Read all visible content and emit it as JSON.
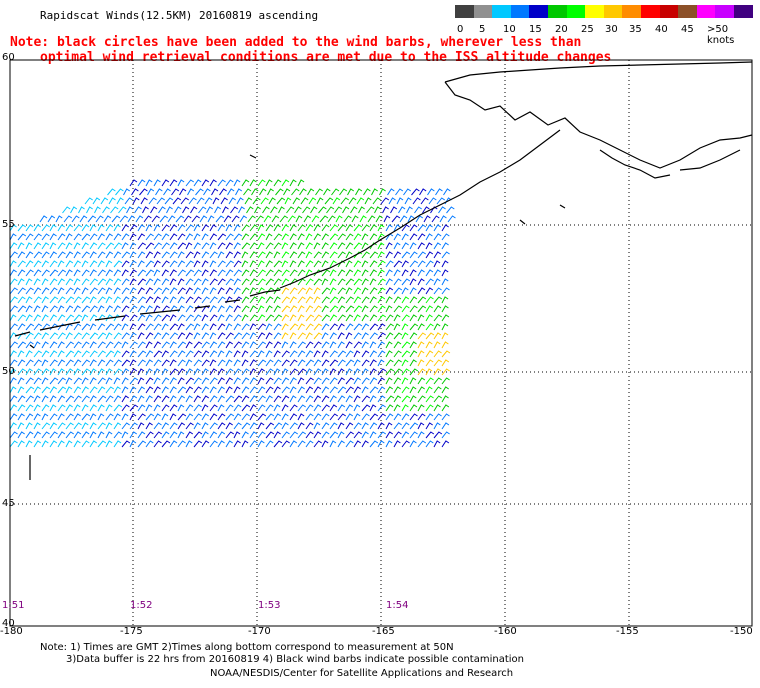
{
  "header": {
    "title": "Rapidscat Winds(12.5KM) 20160819 ascending",
    "note_line1": "Note: black circles have been added to the wind barbs, wherever less than",
    "note_line2": "optimal wind retrieval conditions are met due to the ISS altitude changes"
  },
  "legend": {
    "colors": [
      "#404040",
      "#909090",
      "#00c8ff",
      "#0078ff",
      "#0000c8",
      "#00c800",
      "#00ff00",
      "#ffff00",
      "#ffc800",
      "#ff8c00",
      "#ff0000",
      "#c80000",
      "#8c5028",
      "#ff00ff",
      "#c800ff",
      "#400080"
    ],
    "labels": [
      "0",
      "5",
      "10",
      "15",
      "20",
      "25",
      "30",
      "35",
      "40",
      "45",
      ">50 knots"
    ]
  },
  "map": {
    "lat_labels": [
      "60",
      "55",
      "50",
      "45",
      "40"
    ],
    "lon_labels": [
      "-180",
      "-175",
      "-170",
      "-165",
      "-160",
      "-155",
      "-150"
    ],
    "time_labels": [
      "1:51",
      "1:52",
      "1:53",
      "1:54"
    ]
  },
  "footer": {
    "line1": "Note: 1) Times are GMT 2)Times along bottom correspond to measurement at 50N",
    "line2": "3)Data buffer is 22 hrs from 20160819 4) Black wind barbs indicate possible contamination",
    "line3": "NOAA/NESDIS/Center for Satellite Applications and Research"
  }
}
